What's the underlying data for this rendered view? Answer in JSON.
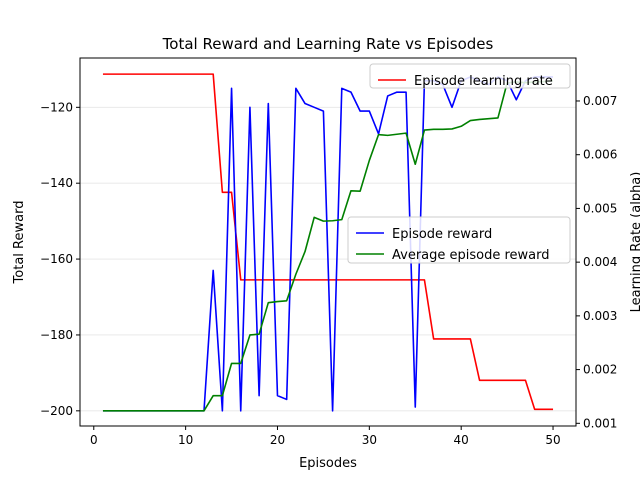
{
  "chart_data": {
    "type": "line",
    "title": "Total Reward and Learning Rate vs Episodes",
    "xlabel": "Episodes",
    "ylabel_left": "Total Reward",
    "ylabel_right": "Learning Rate (alpha)",
    "xlim": [
      -1.5,
      52.5
    ],
    "ylim_left": [
      -204,
      -107
    ],
    "ylim_right": [
      0.00095,
      0.0078
    ],
    "x_ticks": [
      0,
      10,
      20,
      30,
      40,
      50
    ],
    "y_left_ticks": [
      -200,
      -180,
      -160,
      -140,
      -120
    ],
    "y_right_ticks": [
      0.001,
      0.002,
      0.003,
      0.004,
      0.005,
      0.006,
      0.007
    ],
    "y_right_tick_labels": [
      "0.001",
      "0.002",
      "0.003",
      "0.004",
      "0.005",
      "0.006",
      "0.007"
    ],
    "grid": "horizontal",
    "x": [
      1,
      2,
      3,
      4,
      5,
      6,
      7,
      8,
      9,
      10,
      11,
      12,
      13,
      14,
      15,
      16,
      17,
      18,
      19,
      20,
      21,
      22,
      23,
      24,
      25,
      26,
      27,
      28,
      29,
      30,
      31,
      32,
      33,
      34,
      35,
      36,
      37,
      38,
      39,
      40,
      41,
      42,
      43,
      44,
      45,
      46,
      47,
      48,
      49,
      50
    ],
    "series": [
      {
        "name": "Episode reward",
        "axis": "left",
        "color": "#0000ff",
        "legend": "reward-legend",
        "values": [
          -200,
          -200,
          -200,
          -200,
          -200,
          -200,
          -200,
          -200,
          -200,
          -200,
          -200,
          -200,
          -163,
          -200,
          -115,
          -200,
          -120,
          -196,
          -119,
          -196,
          -197,
          -115,
          -119,
          -120,
          -121,
          -200,
          -115,
          -116,
          -121,
          -121,
          -127,
          -117,
          -116,
          -116,
          -199,
          -113,
          -113,
          -114,
          -120,
          -113,
          -112,
          -113,
          -114,
          -112,
          -113,
          -118,
          -113,
          -112,
          -112,
          -112
        ]
      },
      {
        "name": "Average episode reward",
        "axis": "left",
        "color": "#008000",
        "legend": "reward-legend",
        "values": [
          -200,
          -200,
          -200,
          -200,
          -200,
          -200,
          -200,
          -200,
          -200,
          -200,
          -200,
          -200,
          -196,
          -196,
          -187.5,
          -187.5,
          -180,
          -179.8,
          -171.5,
          -171.2,
          -171,
          -164,
          -158,
          -149,
          -150,
          -149.9,
          -149.6,
          -142,
          -142.1,
          -134,
          -127.2,
          -127.4,
          -127.1,
          -126.8,
          -135,
          -126,
          -125.8,
          -125.8,
          -125.7,
          -125,
          -123.5,
          -123.2,
          -123,
          -122.8,
          -113.6,
          -113.3,
          -113.5,
          -113.3,
          -113.2,
          -113
        ]
      },
      {
        "name": "Episode learning rate",
        "axis": "right",
        "color": "#ff0000",
        "legend": "lr-legend",
        "values": [
          0.0075,
          0.0075,
          0.0075,
          0.0075,
          0.0075,
          0.0075,
          0.0075,
          0.0075,
          0.0075,
          0.0075,
          0.0075,
          0.0075,
          0.0075,
          0.0053,
          0.0053,
          0.00367,
          0.00367,
          0.00367,
          0.00367,
          0.00367,
          0.00367,
          0.00367,
          0.00367,
          0.00367,
          0.00367,
          0.00367,
          0.00367,
          0.00367,
          0.00367,
          0.00367,
          0.00367,
          0.00367,
          0.00367,
          0.00367,
          0.00367,
          0.00367,
          0.00257,
          0.00257,
          0.00257,
          0.00257,
          0.00257,
          0.0018,
          0.0018,
          0.0018,
          0.0018,
          0.0018,
          0.0018,
          0.00126,
          0.00126,
          0.00126
        ]
      }
    ],
    "legends": {
      "lr-legend": {
        "placement": "upper-right"
      },
      "reward-legend": {
        "placement": "center-right"
      }
    }
  }
}
